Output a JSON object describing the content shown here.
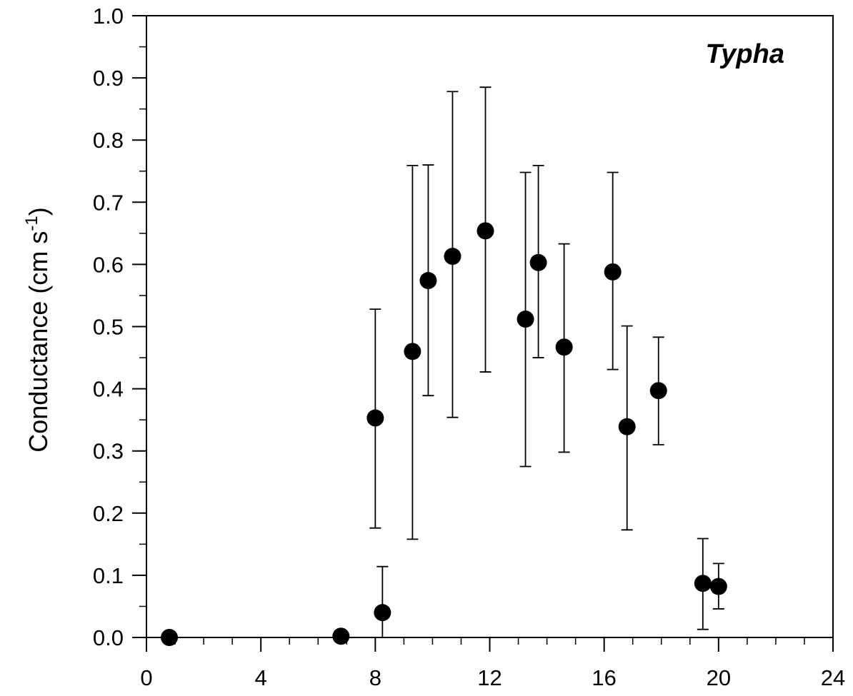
{
  "chart_data": {
    "type": "scatter",
    "title": "",
    "xlabel": "",
    "ylabel": "Conductance (cm s-1)",
    "ylabel_parts": {
      "main": "Conductance (cm  s",
      "superscript": "-1",
      "close": ")"
    },
    "annotation": "Typha",
    "xlim": [
      0,
      24
    ],
    "ylim": [
      0.0,
      1.0
    ],
    "x_ticks": [
      0,
      4,
      8,
      12,
      16,
      20,
      24
    ],
    "y_ticks": [
      0.0,
      0.1,
      0.2,
      0.3,
      0.4,
      0.5,
      0.6,
      0.7,
      0.8,
      0.9,
      1.0
    ],
    "x_tick_labels": [
      "0",
      "4",
      "8",
      "12",
      "16",
      "20",
      "24"
    ],
    "y_tick_labels": [
      "0.0",
      "0.1",
      "0.2",
      "0.3",
      "0.4",
      "0.5",
      "0.6",
      "0.7",
      "0.8",
      "0.9",
      "1.0"
    ],
    "grid": false,
    "legend": "none",
    "marker_color": "#000000",
    "series": [
      {
        "points": [
          {
            "x": 0.8,
            "y": 0.0
          },
          {
            "x": 6.8,
            "y": 0.002
          },
          {
            "x": 8.0,
            "y": 0.353,
            "err_low": 0.176,
            "err_high": 0.528
          },
          {
            "x": 8.25,
            "y": 0.04,
            "err_low": 0.0,
            "err_high": 0.114
          },
          {
            "x": 9.3,
            "y": 0.46,
            "err_low": 0.158,
            "err_high": 0.759
          },
          {
            "x": 9.85,
            "y": 0.574,
            "err_low": 0.389,
            "err_high": 0.76
          },
          {
            "x": 10.7,
            "y": 0.613,
            "err_low": 0.354,
            "err_high": 0.878
          },
          {
            "x": 11.85,
            "y": 0.654,
            "err_low": 0.427,
            "err_high": 0.885
          },
          {
            "x": 13.25,
            "y": 0.512,
            "err_low": 0.275,
            "err_high": 0.748
          },
          {
            "x": 13.7,
            "y": 0.603,
            "err_low": 0.45,
            "err_high": 0.759
          },
          {
            "x": 14.6,
            "y": 0.467,
            "err_low": 0.298,
            "err_high": 0.633
          },
          {
            "x": 16.3,
            "y": 0.588,
            "err_low": 0.431,
            "err_high": 0.748
          },
          {
            "x": 16.8,
            "y": 0.339,
            "err_low": 0.173,
            "err_high": 0.501
          },
          {
            "x": 17.9,
            "y": 0.397,
            "err_low": 0.31,
            "err_high": 0.483
          },
          {
            "x": 19.45,
            "y": 0.087,
            "err_low": 0.013,
            "err_high": 0.159
          },
          {
            "x": 20.0,
            "y": 0.082,
            "err_low": 0.046,
            "err_high": 0.119
          }
        ]
      }
    ]
  }
}
